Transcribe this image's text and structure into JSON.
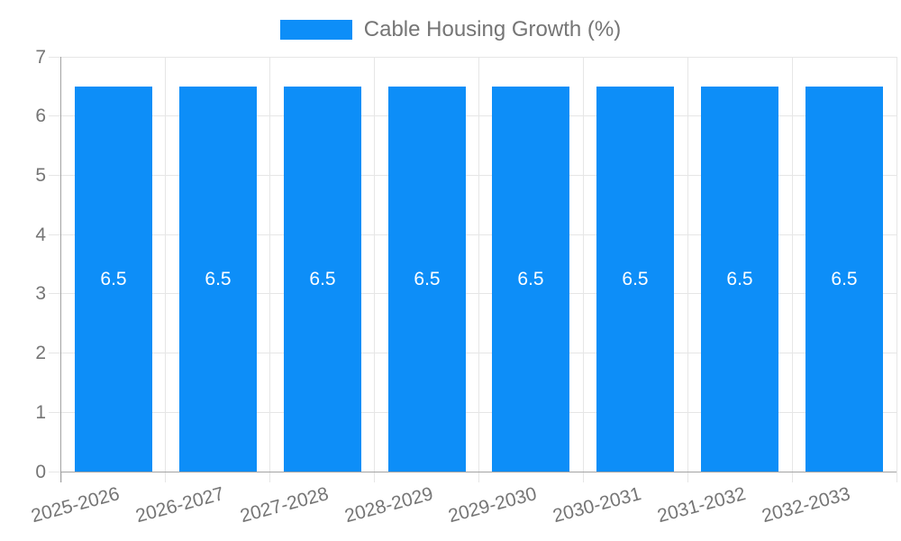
{
  "chart_data": {
    "type": "bar",
    "title": "Cable Housing Growth (%)",
    "categories": [
      "2025-2026",
      "2026-2027",
      "2027-2028",
      "2028-2029",
      "2029-2030",
      "2030-2031",
      "2031-2032",
      "2032-2033"
    ],
    "series": [
      {
        "name": "Cable Housing Growth (%)",
        "values": [
          6.5,
          6.5,
          6.5,
          6.5,
          6.5,
          6.5,
          6.5,
          6.5
        ]
      }
    ],
    "xlabel": "",
    "ylabel": "",
    "ylim": [
      0,
      7
    ],
    "yticks": [
      0,
      1,
      2,
      3,
      4,
      5,
      6,
      7
    ],
    "grid": true,
    "legend_position": "top",
    "value_labels_shown": true,
    "xlabel_rotation_deg": -15,
    "colors": {
      "bar": "#0d8ef8",
      "grid": "#e6e6e6",
      "axis": "#a3a3a3",
      "tick_text": "#757575",
      "value_text": "#ffffff"
    }
  }
}
